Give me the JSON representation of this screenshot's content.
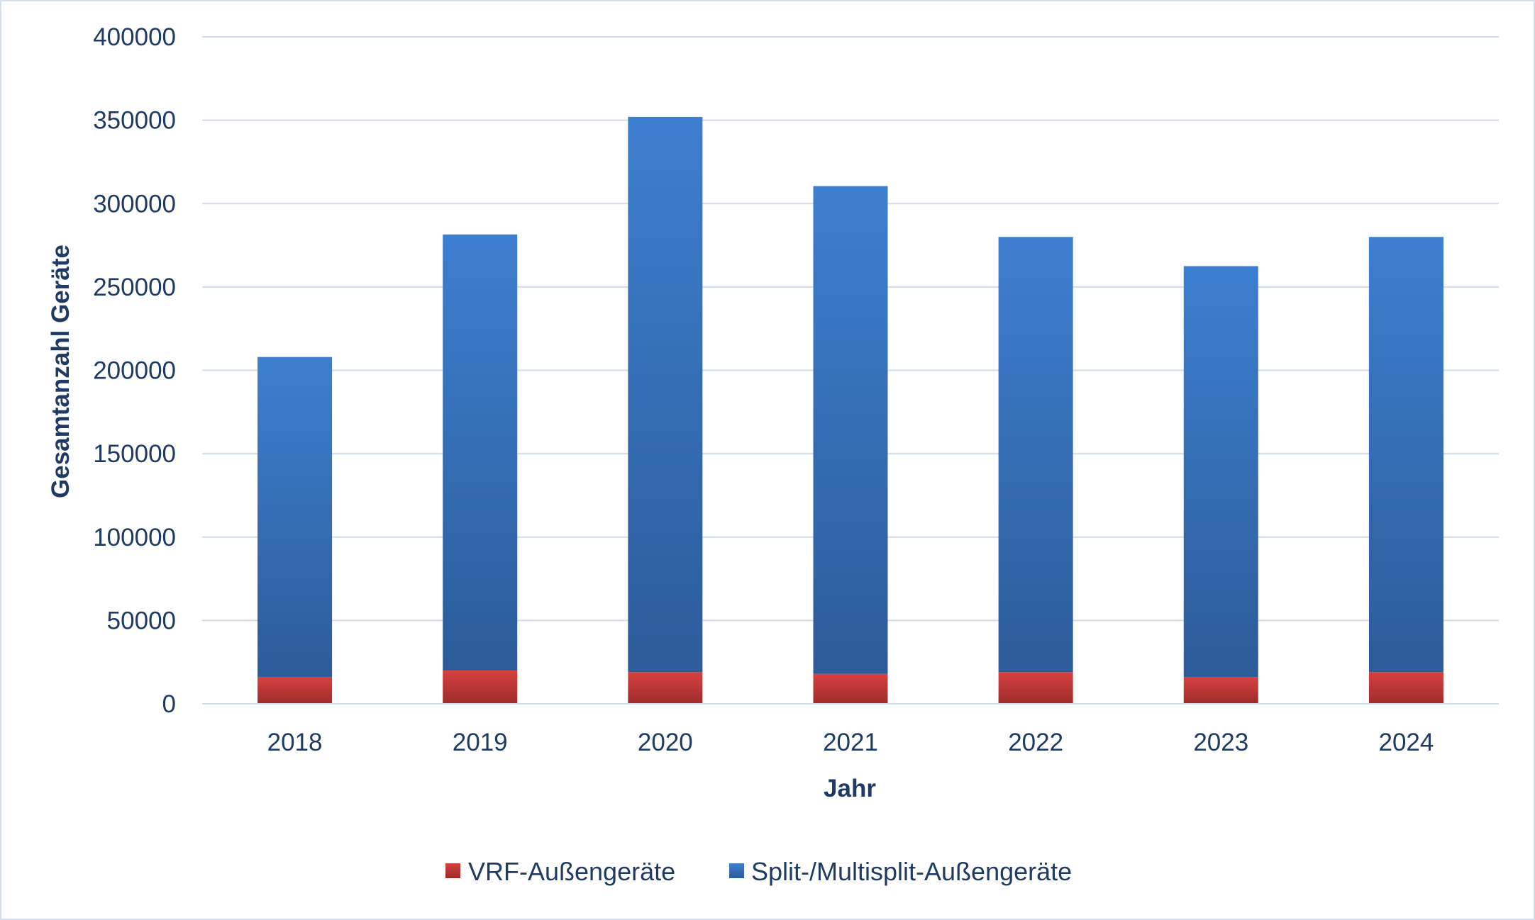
{
  "chart_data": {
    "type": "bar",
    "stacked": true,
    "categories": [
      "2018",
      "2019",
      "2020",
      "2021",
      "2022",
      "2023",
      "2024"
    ],
    "series": [
      {
        "name": "VRF-Außengeräte",
        "color": "#c0393b",
        "values": [
          16000,
          20000,
          19000,
          18000,
          19000,
          16000,
          19000
        ]
      },
      {
        "name": "Split-/Multisplit-Außengeräte",
        "color": "#3a78c7",
        "values": [
          192000,
          261500,
          333000,
          292500,
          261000,
          246500,
          261000
        ]
      }
    ],
    "xlabel": "Jahr",
    "ylabel": "Gesamtanzahl Geräte",
    "ylim": [
      0,
      400000
    ],
    "yticks": [
      "0",
      "50000",
      "100000",
      "150000",
      "200000",
      "250000",
      "300000",
      "350000",
      "400000"
    ],
    "grid": true,
    "legend_position": "bottom"
  }
}
